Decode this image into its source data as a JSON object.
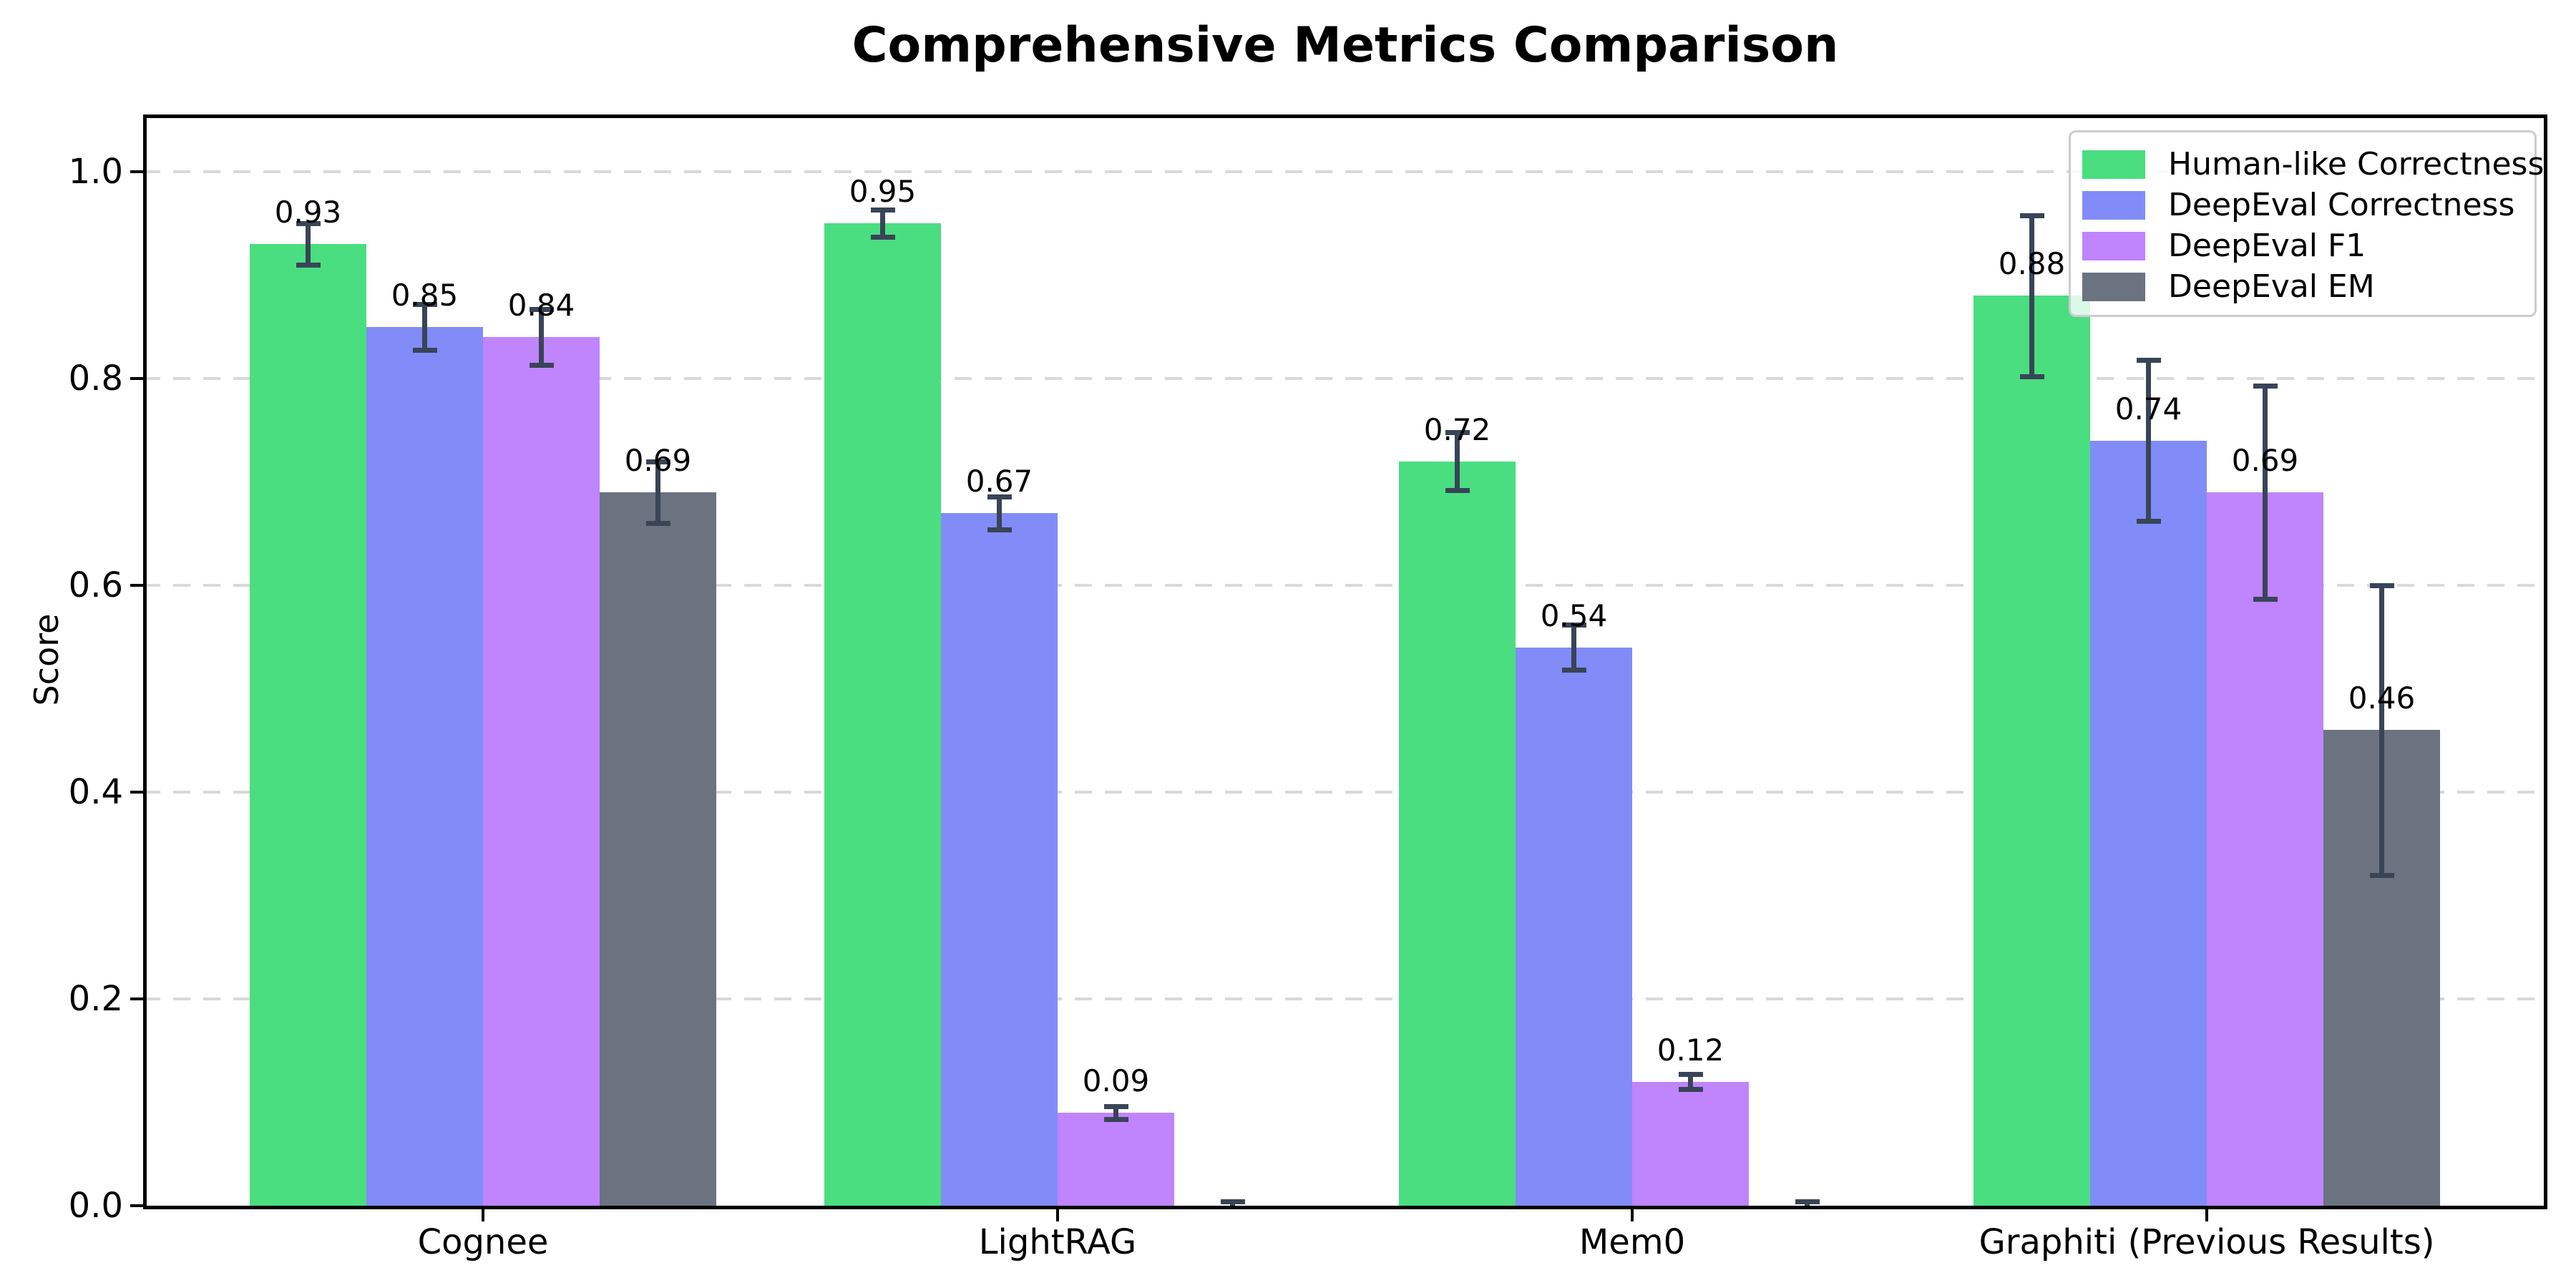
{
  "title": "Comprehensive Metrics Comparison",
  "chart_data": {
    "type": "bar",
    "title": "Comprehensive Metrics Comparison",
    "xlabel": "",
    "ylabel": "Score",
    "ylim": [
      0,
      1.055
    ],
    "yticks": [
      "0.0",
      "0.2",
      "0.4",
      "0.6",
      "0.8",
      "1.0"
    ],
    "grid": "horizontal-dashed",
    "legend_position": "upper-right",
    "categories": [
      "Cognee",
      "LightRAG",
      "Mem0",
      "Graphiti (Previous Results)"
    ],
    "series": [
      {
        "name": "Human-like Correctness",
        "color": "#4ade80",
        "values": [
          0.93,
          0.95,
          0.72,
          0.88
        ],
        "errors": [
          0.02,
          0.013,
          0.028,
          0.078
        ],
        "labels": [
          "0.93",
          "0.95",
          "0.72",
          "0.88"
        ]
      },
      {
        "name": "DeepEval Correctness",
        "color": "#818cf8",
        "values": [
          0.85,
          0.67,
          0.54,
          0.74
        ],
        "errors": [
          0.022,
          0.016,
          0.022,
          0.078
        ],
        "labels": [
          "0.85",
          "0.67",
          "0.54",
          "0.74"
        ]
      },
      {
        "name": "DeepEval F1",
        "color": "#c084fc",
        "values": [
          0.84,
          0.09,
          0.12,
          0.69
        ],
        "errors": [
          0.027,
          0.006,
          0.007,
          0.103
        ],
        "labels": [
          "0.84",
          "0.09",
          "0.12",
          "0.69"
        ]
      },
      {
        "name": "DeepEval EM",
        "color": "#6b7280",
        "values": [
          0.69,
          0.0,
          0.0,
          0.46
        ],
        "errors": [
          0.03,
          0.004,
          0.004,
          0.14
        ],
        "labels": [
          "0.69",
          "",
          "",
          "0.46"
        ]
      }
    ],
    "error_bar_color": "#394457",
    "grid_color": "#d9d9d9",
    "bar_label_color": "#000000"
  }
}
